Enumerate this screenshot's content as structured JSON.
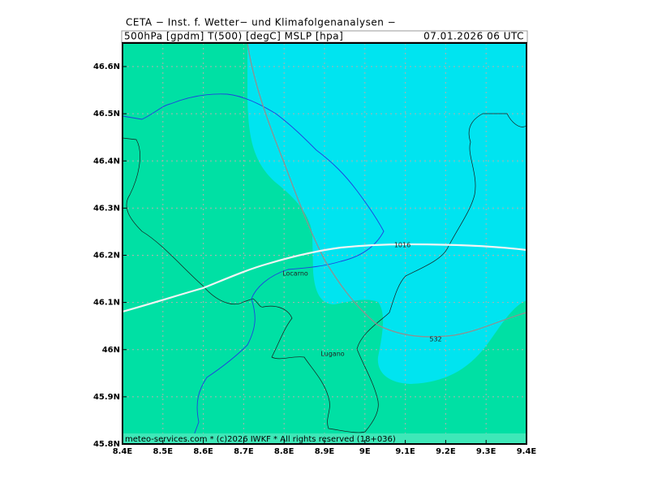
{
  "header": {
    "title": "CETA − Inst. f. Wetter− und Klimafolgenanalysen −",
    "fields": "500hPa [gpdm] T(500) [degC] MSLP [hpa]",
    "valid_time": "07.01.2026 06 UTC"
  },
  "axes": {
    "x_ticks": [
      "8.4E",
      "8.5E",
      "8.6E",
      "8.7E",
      "8.8E",
      "8.9E",
      "9E",
      "9.1E",
      "9.2E",
      "9.3E",
      "9.4E"
    ],
    "y_ticks": [
      "46.6N",
      "46.5N",
      "46.4N",
      "46.3N",
      "46.2N",
      "46.1N",
      "46N",
      "45.9N",
      "45.8N"
    ]
  },
  "map_labels": {
    "isobar": "1016",
    "geopotential": "532",
    "city_1": "Locarno",
    "city_2": "Lugano"
  },
  "footer": "meteo-services.com * (c)2026 IWKF * All rights reserved (18+036)"
}
